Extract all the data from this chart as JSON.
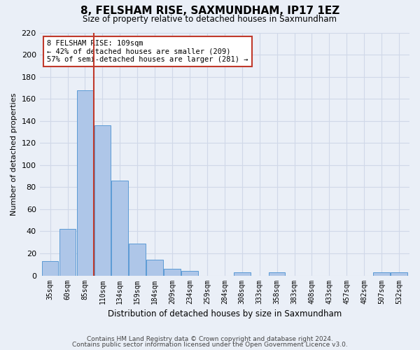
{
  "title": "8, FELSHAM RISE, SAXMUNDHAM, IP17 1EZ",
  "subtitle": "Size of property relative to detached houses in Saxmundham",
  "xlabel": "Distribution of detached houses by size in Saxmundham",
  "ylabel": "Number of detached properties",
  "footnote1": "Contains HM Land Registry data © Crown copyright and database right 2024.",
  "footnote2": "Contains public sector information licensed under the Open Government Licence v3.0.",
  "categories": [
    "35sqm",
    "60sqm",
    "85sqm",
    "110sqm",
    "134sqm",
    "159sqm",
    "184sqm",
    "209sqm",
    "234sqm",
    "259sqm",
    "284sqm",
    "308sqm",
    "333sqm",
    "358sqm",
    "383sqm",
    "408sqm",
    "433sqm",
    "457sqm",
    "482sqm",
    "507sqm",
    "532sqm"
  ],
  "values": [
    13,
    42,
    168,
    136,
    86,
    29,
    14,
    6,
    4,
    0,
    0,
    3,
    0,
    3,
    0,
    0,
    0,
    0,
    0,
    3,
    3
  ],
  "bar_color": "#aec6e8",
  "bar_edge_color": "#5b9bd5",
  "grid_color": "#d0d8e8",
  "background_color": "#eaeff7",
  "vline_color": "#c0392b",
  "annotation_text": "8 FELSHAM RISE: 109sqm\n← 42% of detached houses are smaller (209)\n57% of semi-detached houses are larger (281) →",
  "annotation_box_color": "#ffffff",
  "annotation_box_edge_color": "#c0392b",
  "ylim": [
    0,
    220
  ],
  "yticks": [
    0,
    20,
    40,
    60,
    80,
    100,
    120,
    140,
    160,
    180,
    200,
    220
  ]
}
